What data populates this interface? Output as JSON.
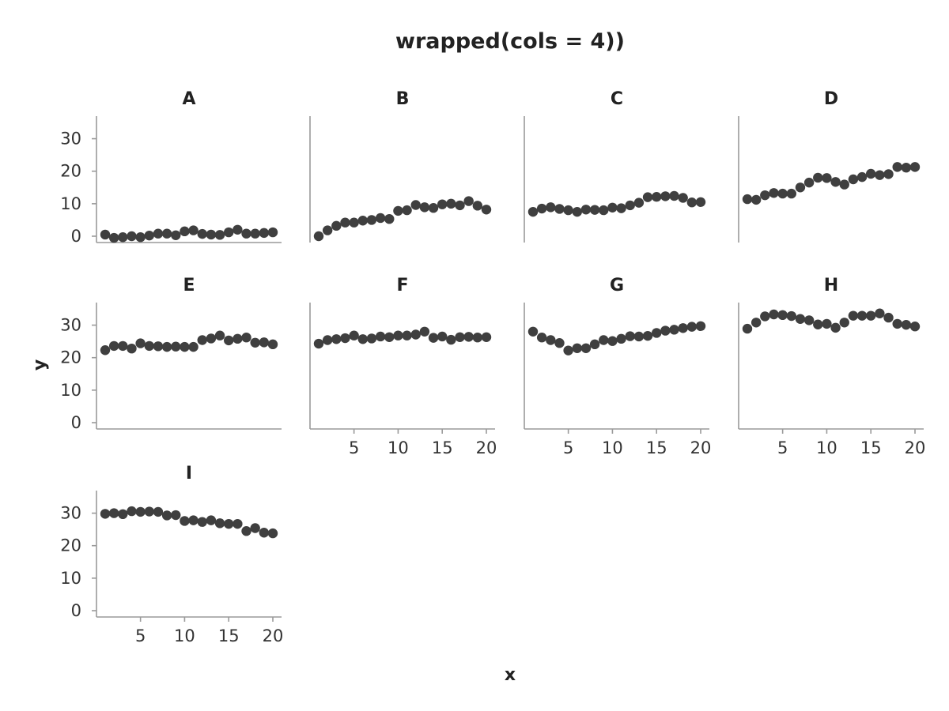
{
  "chart_data": {
    "type": "scatter",
    "title": "wrapped(cols = 4))",
    "xlabel": "x",
    "ylabel": "y",
    "xlim": [
      1,
      20
    ],
    "ylim": [
      0,
      35
    ],
    "xticks": [
      5,
      10,
      15,
      20
    ],
    "yticks": [
      0,
      10,
      20,
      30
    ],
    "grid": false,
    "x": [
      1,
      2,
      3,
      4,
      5,
      6,
      7,
      8,
      9,
      10,
      11,
      12,
      13,
      14,
      15,
      16,
      17,
      18,
      19,
      20
    ],
    "panels": [
      {
        "name": "A",
        "values": [
          0.5,
          -0.5,
          -0.3,
          0.0,
          -0.3,
          0.2,
          0.8,
          0.8,
          0.3,
          1.5,
          1.8,
          0.7,
          0.5,
          0.4,
          1.2,
          2.0,
          0.8,
          0.8,
          1.0,
          1.2
        ]
      },
      {
        "name": "B",
        "values": [
          0.0,
          1.8,
          3.2,
          4.2,
          4.2,
          4.8,
          5.0,
          5.6,
          5.3,
          7.8,
          8.0,
          9.6,
          8.9,
          8.7,
          9.8,
          10.0,
          9.5,
          10.8,
          9.4,
          8.2
        ]
      },
      {
        "name": "C",
        "values": [
          7.5,
          8.5,
          8.9,
          8.4,
          8.0,
          7.5,
          8.2,
          8.1,
          8.0,
          8.8,
          8.6,
          9.5,
          10.3,
          12.0,
          12.1,
          12.3,
          12.4,
          11.8,
          10.4,
          10.5
        ]
      },
      {
        "name": "D",
        "values": [
          11.4,
          11.2,
          12.6,
          13.3,
          13.1,
          13.1,
          15.0,
          16.5,
          18.0,
          17.9,
          16.7,
          15.9,
          17.5,
          18.2,
          19.2,
          18.8,
          19.1,
          21.3,
          21.1,
          21.3
        ]
      },
      {
        "name": "E",
        "values": [
          22.3,
          23.6,
          23.6,
          22.8,
          24.4,
          23.6,
          23.5,
          23.3,
          23.4,
          23.3,
          23.3,
          25.4,
          25.9,
          26.8,
          25.3,
          25.8,
          26.2,
          24.6,
          24.7,
          24.1
        ]
      },
      {
        "name": "F",
        "values": [
          24.3,
          25.4,
          25.7,
          26.0,
          26.8,
          25.7,
          25.9,
          26.5,
          26.3,
          26.8,
          26.8,
          27.1,
          28.0,
          26.1,
          26.5,
          25.5,
          26.3,
          26.4,
          26.2,
          26.3
        ]
      },
      {
        "name": "G",
        "values": [
          28.0,
          26.2,
          25.4,
          24.5,
          22.2,
          22.9,
          22.9,
          24.1,
          25.4,
          25.1,
          25.8,
          26.6,
          26.5,
          26.7,
          27.6,
          28.3,
          28.6,
          29.1,
          29.5,
          29.7
        ]
      },
      {
        "name": "H",
        "values": [
          28.9,
          30.8,
          32.7,
          33.3,
          33.1,
          32.8,
          31.9,
          31.5,
          30.2,
          30.4,
          29.2,
          30.8,
          32.9,
          32.9,
          32.9,
          33.6,
          32.3,
          30.4,
          30.1,
          29.6
        ]
      },
      {
        "name": "I",
        "values": [
          29.8,
          30.0,
          29.7,
          30.6,
          30.4,
          30.5,
          30.4,
          29.3,
          29.4,
          27.6,
          27.8,
          27.3,
          27.8,
          26.9,
          26.7,
          26.7,
          24.5,
          25.4,
          24.0,
          23.8
        ]
      }
    ]
  }
}
